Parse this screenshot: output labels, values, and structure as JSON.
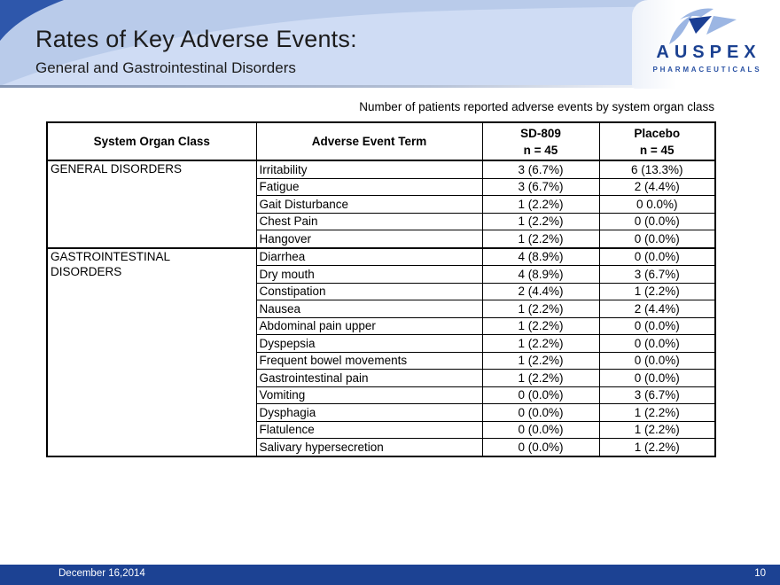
{
  "slide": {
    "title": "Rates of Key Adverse Events:",
    "subtitle": "General and Gastrointestinal Disorders",
    "footer": {
      "date": "December 16,2014",
      "page_number": "10"
    }
  },
  "logo": {
    "name": "AUSPEX",
    "tagline": "PHARMACEUTICALS",
    "bird_icon": "bird-logo-icon"
  },
  "table": {
    "caption": "Number of patients reported adverse events by system organ class",
    "columns": [
      "System Organ Class",
      "Adverse  Event Term",
      "SD-809\nn = 45",
      "Placebo\nn = 45"
    ],
    "sections": [
      {
        "organ_class": "GENERAL DISORDERS",
        "rows": [
          [
            "Irritability",
            "3 (6.7%)",
            "6 (13.3%)"
          ],
          [
            "Fatigue",
            "3 (6.7%)",
            "2 (4.4%)"
          ],
          [
            "Gait Disturbance",
            "1 (2.2%)",
            "0 0.0%)"
          ],
          [
            "Chest Pain",
            "1 (2.2%)",
            "0 (0.0%)"
          ],
          [
            "Hangover",
            "1 (2.2%)",
            "0 (0.0%)"
          ]
        ]
      },
      {
        "organ_class": "GASTROINTESTINAL\nDISORDERS",
        "rows": [
          [
            "Diarrhea",
            "4 (8.9%)",
            "0 (0.0%)"
          ],
          [
            "Dry mouth",
            "4 (8.9%)",
            "3 (6.7%)"
          ],
          [
            "Constipation",
            "2 (4.4%)",
            "1 (2.2%)"
          ],
          [
            "Nausea",
            "1 (2.2%)",
            "2 (4.4%)"
          ],
          [
            "Abdominal pain upper",
            "1 (2.2%)",
            "0 (0.0%)"
          ],
          [
            "Dyspepsia",
            "1 (2.2%)",
            "0 (0.0%)"
          ],
          [
            "Frequent bowel movements",
            "1 (2.2%)",
            "0 (0.0%)"
          ],
          [
            "Gastrointestinal pain",
            "1 (2.2%)",
            "0 (0.0%)"
          ],
          [
            "Vomiting",
            "0 (0.0%)",
            "3 (6.7%)"
          ],
          [
            "Dysphagia",
            "0 (0.0%)",
            "1 (2.2%)"
          ],
          [
            "Flatulence",
            "0 (0.0%)",
            "1 (2.2%)"
          ],
          [
            "Salivary hypersecretion",
            "0 (0.0%)",
            "1 (2.2%)"
          ]
        ]
      }
    ]
  },
  "colors": {
    "header_base": "#b9cbea",
    "header_light_sweep": "#cfdcf4",
    "corner_dark": "#2e57ab",
    "footer_bg": "#1c4293",
    "logo_navy": "#1b4191",
    "logo_light_blue": "#9cb6e3",
    "table_border": "#000000",
    "text": "#1c1c1c"
  }
}
